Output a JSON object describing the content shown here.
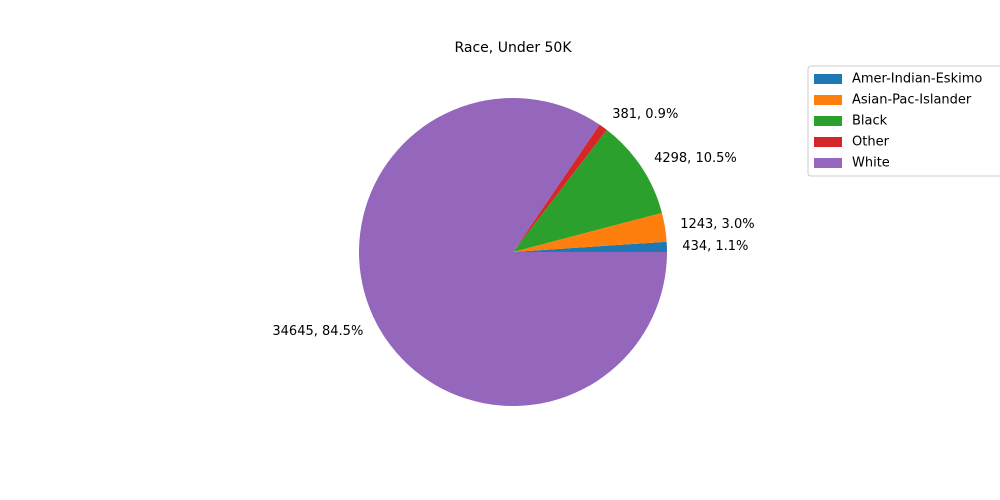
{
  "chart_data": {
    "type": "pie",
    "title": "Race, Under 50K",
    "slices": [
      {
        "label": " Amer-Indian-Eskimo",
        "value": 434,
        "percent": "1.1%",
        "color": "#1f77b4"
      },
      {
        "label": " Asian-Pac-Islander",
        "value": 1243,
        "percent": "3.0%",
        "color": "#ff7f0e"
      },
      {
        "label": " Black",
        "value": 4298,
        "percent": "10.5%",
        "color": "#2ca02c"
      },
      {
        "label": " Other",
        "value": 381,
        "percent": "0.9%",
        "color": "#d62728"
      },
      {
        "label": " White",
        "value": 34645,
        "percent": "84.5%",
        "color": "#9467bd"
      }
    ],
    "data_labels": [
      "434, 1.1%",
      "1243, 3.0%",
      "4298, 10.5%",
      "381, 0.9%",
      "34645, 84.5%"
    ],
    "start_angle_deg": 0,
    "direction": "counterclockwise",
    "legend_position": "top-right, outside plot"
  }
}
